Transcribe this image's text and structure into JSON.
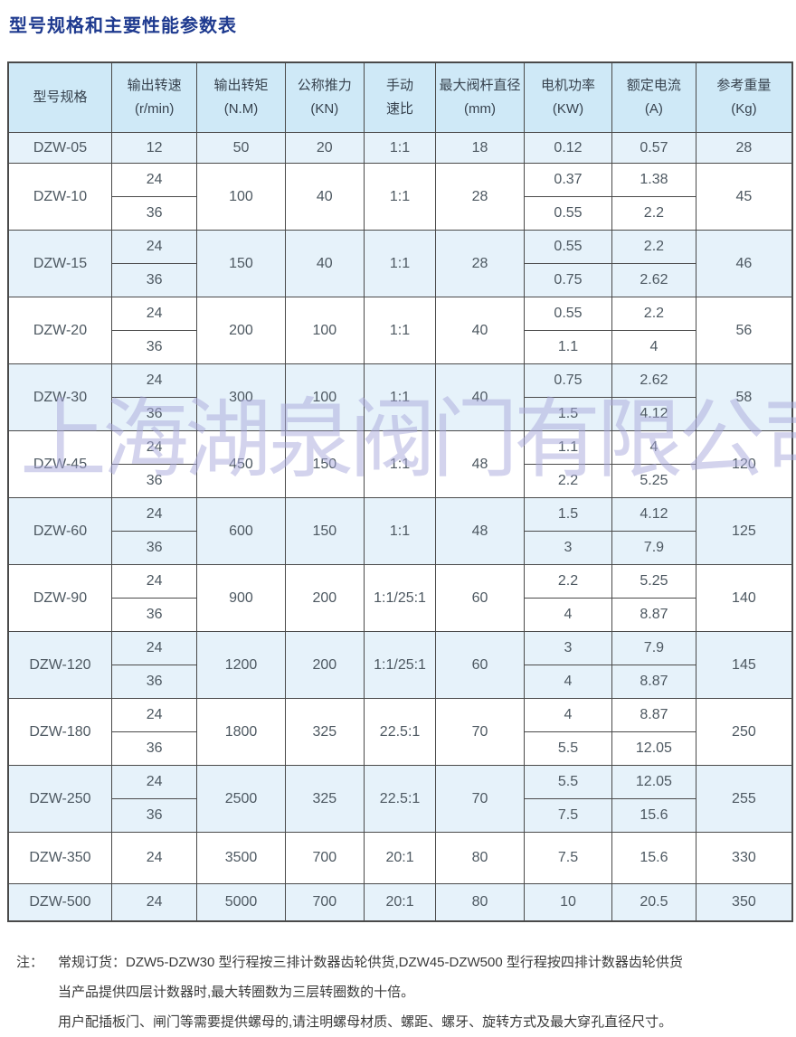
{
  "page": {
    "title": "型号规格和主要性能参数表",
    "watermark": "上海湖泉阀门有限公司"
  },
  "table": {
    "headers": [
      {
        "line1": "型号规格",
        "line2": ""
      },
      {
        "line1": "输出转速",
        "line2": "(r/min)"
      },
      {
        "line1": "输出转矩",
        "line2": "(N.M)"
      },
      {
        "line1": "公称推力",
        "line2": "(KN)"
      },
      {
        "line1": "手动",
        "line2": "速比"
      },
      {
        "line1": "最大阀杆直径",
        "line2": "(mm)"
      },
      {
        "line1": "电机功率",
        "line2": "(KW)"
      },
      {
        "line1": "额定电流",
        "line2": "(A)"
      },
      {
        "line1": "参考重量",
        "line2": "(Kg)"
      }
    ],
    "rows": [
      {
        "model": "DZW-05",
        "speeds": [
          "12"
        ],
        "torque": "50",
        "thrust": "20",
        "ratio": "1:1",
        "stem": "18",
        "power": [
          "0.12"
        ],
        "current": [
          "0.57"
        ],
        "weight": "28",
        "tinted": true
      },
      {
        "model": "DZW-10",
        "speeds": [
          "24",
          "36"
        ],
        "torque": "100",
        "thrust": "40",
        "ratio": "1:1",
        "stem": "28",
        "power": [
          "0.37",
          "0.55"
        ],
        "current": [
          "1.38",
          "2.2"
        ],
        "weight": "45",
        "tinted": false
      },
      {
        "model": "DZW-15",
        "speeds": [
          "24",
          "36"
        ],
        "torque": "150",
        "thrust": "40",
        "ratio": "1:1",
        "stem": "28",
        "power": [
          "0.55",
          "0.75"
        ],
        "current": [
          "2.2",
          "2.62"
        ],
        "weight": "46",
        "tinted": true
      },
      {
        "model": "DZW-20",
        "speeds": [
          "24",
          "36"
        ],
        "torque": "200",
        "thrust": "100",
        "ratio": "1:1",
        "stem": "40",
        "power": [
          "0.55",
          "1.1"
        ],
        "current": [
          "2.2",
          "4"
        ],
        "weight": "56",
        "tinted": false
      },
      {
        "model": "DZW-30",
        "speeds": [
          "24",
          "36"
        ],
        "torque": "300",
        "thrust": "100",
        "ratio": "1:1",
        "stem": "40",
        "power": [
          "0.75",
          "1.5"
        ],
        "current": [
          "2.62",
          "4.12"
        ],
        "weight": "58",
        "tinted": true
      },
      {
        "model": "DZW-45",
        "speeds": [
          "24",
          "36"
        ],
        "torque": "450",
        "thrust": "150",
        "ratio": "1:1",
        "stem": "48",
        "power": [
          "1.1",
          "2.2"
        ],
        "current": [
          "4",
          "5.25"
        ],
        "weight": "120",
        "tinted": false
      },
      {
        "model": "DZW-60",
        "speeds": [
          "24",
          "36"
        ],
        "torque": "600",
        "thrust": "150",
        "ratio": "1:1",
        "stem": "48",
        "power": [
          "1.5",
          "3"
        ],
        "current": [
          "4.12",
          "7.9"
        ],
        "weight": "125",
        "tinted": true
      },
      {
        "model": "DZW-90",
        "speeds": [
          "24",
          "36"
        ],
        "torque": "900",
        "thrust": "200",
        "ratio": "1:1/25:1",
        "stem": "60",
        "power": [
          "2.2",
          "4"
        ],
        "current": [
          "5.25",
          "8.87"
        ],
        "weight": "140",
        "tinted": false
      },
      {
        "model": "DZW-120",
        "speeds": [
          "24",
          "36"
        ],
        "torque": "1200",
        "thrust": "200",
        "ratio": "1:1/25:1",
        "stem": "60",
        "power": [
          "3",
          "4"
        ],
        "current": [
          "7.9",
          "8.87"
        ],
        "weight": "145",
        "tinted": true
      },
      {
        "model": "DZW-180",
        "speeds": [
          "24",
          "36"
        ],
        "torque": "1800",
        "thrust": "325",
        "ratio": "22.5:1",
        "stem": "70",
        "power": [
          "4",
          "5.5"
        ],
        "current": [
          "8.87",
          "12.05"
        ],
        "weight": "250",
        "tinted": false
      },
      {
        "model": "DZW-250",
        "speeds": [
          "24",
          "36"
        ],
        "torque": "2500",
        "thrust": "325",
        "ratio": "22.5:1",
        "stem": "70",
        "power": [
          "5.5",
          "7.5"
        ],
        "current": [
          "12.05",
          "15.6"
        ],
        "weight": "255",
        "tinted": true
      },
      {
        "model": "DZW-350",
        "speeds": [
          "24"
        ],
        "torque": "3500",
        "thrust": "700",
        "ratio": "20:1",
        "stem": "80",
        "power": [
          "7.5"
        ],
        "current": [
          "15.6"
        ],
        "weight": "330",
        "tinted": false
      },
      {
        "model": "DZW-500",
        "speeds": [
          "24"
        ],
        "torque": "5000",
        "thrust": "700",
        "ratio": "20:1",
        "stem": "80",
        "power": [
          "10"
        ],
        "current": [
          "20.5"
        ],
        "weight": "350",
        "tinted": true
      }
    ]
  },
  "notes": {
    "prefix": "注：",
    "lines": [
      "常规订货：DZW5-DZW30 型行程按三排计数器齿轮供货,DZW45-DZW500 型行程按四排计数器齿轮供货",
      "当产品提供四层计数器时,最大转圈数为三层转圈数的十倍。",
      "用户配插板门、闸门等需要提供螺母的,请注明螺母材质、螺距、螺牙、旋转方式及最大穿孔直径尺寸。"
    ]
  },
  "colors": {
    "title": "#1e3a8f",
    "header_bg": "#cfe9f7",
    "row_tint": "#e6f2fa",
    "border": "#4a4a4a",
    "watermark": "#a9a9dc"
  }
}
